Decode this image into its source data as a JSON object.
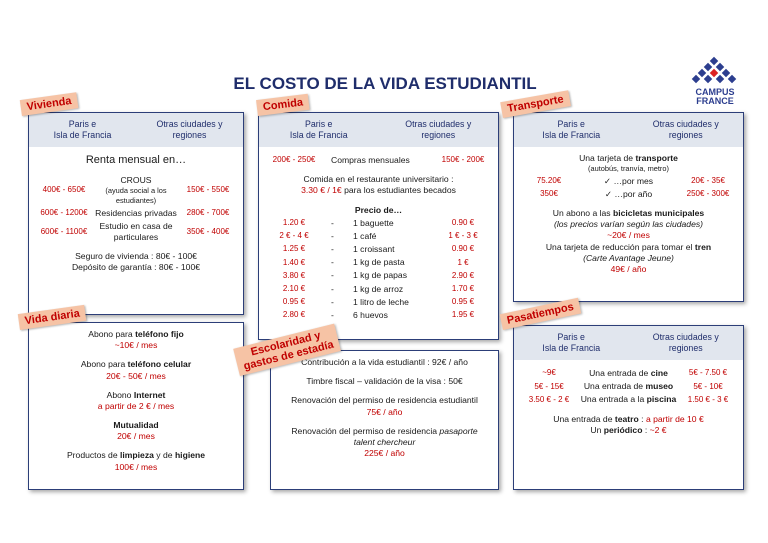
{
  "title": "EL COSTO DE LA VIDA ESTUDIANTIL",
  "logo": {
    "line1": "CAMPUS",
    "line2": "FRANCE"
  },
  "boxes": [
    {
      "id": "vivienda",
      "tag": "Vivienda",
      "columns": [
        "Paris e\nIsla de Francia",
        "Otras ciudades y\nregiones"
      ],
      "groups": [
        [
          {
            "parts": [
              {
                "text": "Renta mensual en…",
                "style": "heading"
              }
            ]
          }
        ],
        [
          {
            "paris": "400€ - 650€",
            "parts": [
              {
                "text": "CROUS"
              },
              {
                "text": "(ayuda social a los estudiantes)",
                "style": "small"
              }
            ],
            "otras": "150€ - 550€"
          },
          {
            "paris": "600€ - 1200€",
            "parts": [
              {
                "text": "Residencias privadas"
              }
            ],
            "otras": "280€ - 700€"
          },
          {
            "paris": "600€ - 1100€",
            "parts": [
              {
                "text": "Estudio en casa de particulares"
              }
            ],
            "otras": "350€ - 400€"
          }
        ],
        [
          {
            "parts": [
              {
                "text": "Seguro de vivienda : 80€ - 100€"
              }
            ]
          },
          {
            "parts": [
              {
                "text": "Depósito de garantía : 80€ - 100€"
              }
            ]
          }
        ]
      ]
    },
    {
      "id": "comida",
      "tag": "Comida",
      "columns": [
        "Paris e\nIsla de Francia",
        "Otras ciudades y\nregiones"
      ],
      "groups": [
        [
          {
            "paris": "200€ - 250€",
            "parts": [
              {
                "text": "Compras mensuales"
              }
            ],
            "otras": "150€ - 200€"
          }
        ],
        [
          {
            "parts": [
              {
                "text": "Comida en el restaurante universitario :"
              }
            ]
          },
          {
            "parts": [
              {
                "text": "3.30 € /  1€",
                "style": "red"
              },
              {
                "text": " para los estudiantes becados"
              }
            ]
          }
        ],
        [
          {
            "parts": [
              {
                "text": "Precio de…",
                "style": "bold"
              }
            ]
          },
          {
            "paris": "1.20 €",
            "parts": [
              {
                "text": "-",
                "style": "dash"
              },
              {
                "text": "1 baguette"
              }
            ],
            "otras": "0.90 €"
          },
          {
            "paris": "2 € - 4 €",
            "parts": [
              {
                "text": "-",
                "style": "dash"
              },
              {
                "text": "1 café"
              }
            ],
            "otras": "1 € - 3 €"
          },
          {
            "paris": "1.25 €",
            "parts": [
              {
                "text": "-",
                "style": "dash"
              },
              {
                "text": "1 croissant"
              }
            ],
            "otras": "0.90 €"
          },
          {
            "paris": "1.40 €",
            "parts": [
              {
                "text": "-",
                "style": "dash"
              },
              {
                "text": "1 kg de pasta"
              }
            ],
            "otras": "1 €"
          },
          {
            "paris": "3.80 €",
            "parts": [
              {
                "text": "-",
                "style": "dash"
              },
              {
                "text": "1 kg de papas"
              }
            ],
            "otras": "2.90 €"
          },
          {
            "paris": "2.10 €",
            "parts": [
              {
                "text": "-",
                "style": "dash"
              },
              {
                "text": "1 kg de arroz"
              }
            ],
            "otras": "1.70 €"
          },
          {
            "paris": "0.95 €",
            "parts": [
              {
                "text": "-",
                "style": "dash"
              },
              {
                "text": "1 litro de leche"
              }
            ],
            "otras": "0.95 €"
          },
          {
            "paris": "2.80 €",
            "parts": [
              {
                "text": "-",
                "style": "dash"
              },
              {
                "text": "6 huevos"
              }
            ],
            "otras": "1.95 €"
          }
        ]
      ]
    },
    {
      "id": "transporte",
      "tag": "Transporte",
      "columns": [
        "Paris e\nIsla de Francia",
        "Otras ciudades y\nregiones"
      ],
      "groups": [
        [
          {
            "parts": [
              {
                "text": "Una tarjeta de "
              },
              {
                "text": "transporte",
                "style": "bold"
              }
            ]
          },
          {
            "parts": [
              {
                "text": "(autobús, tranvía, metro)",
                "style": "small"
              }
            ]
          },
          {
            "paris": "75.20€",
            "parts": [
              {
                "text": "✓ …por mes"
              }
            ],
            "otras": "20€ - 35€"
          },
          {
            "paris": "350€",
            "parts": [
              {
                "text": "✓ …por año"
              }
            ],
            "otras": "250€ - 300€"
          }
        ],
        [
          {
            "parts": [
              {
                "text": "Un abono a las "
              },
              {
                "text": "bicicletas municipales",
                "style": "bold"
              }
            ]
          },
          {
            "parts": [
              {
                "text": "(los precios varían según las ciudades)",
                "style": "italic"
              }
            ]
          },
          {
            "parts": [
              {
                "text": "~20€ / mes",
                "style": "red"
              }
            ]
          },
          {
            "parts": [
              {
                "text": "Una tarjeta de reducción para tomar el "
              },
              {
                "text": "tren",
                "style": "bold"
              }
            ]
          },
          {
            "parts": [
              {
                "text": "(Carte Avantage Jeune)",
                "style": "italic"
              }
            ]
          },
          {
            "parts": [
              {
                "text": "49€ / año",
                "style": "red"
              }
            ]
          }
        ]
      ]
    },
    {
      "id": "vida",
      "tag": "Vida diaria",
      "groups": [
        [
          {
            "parts": [
              {
                "text": "Abono para "
              },
              {
                "text": "teléfono fijo",
                "style": "bold"
              }
            ]
          },
          {
            "parts": [
              {
                "text": "~10€ / mes",
                "style": "red"
              }
            ]
          }
        ],
        [
          {
            "parts": [
              {
                "text": "Abono para "
              },
              {
                "text": "teléfono celular",
                "style": "bold"
              }
            ]
          },
          {
            "parts": [
              {
                "text": "20€ - 50€ / mes",
                "style": "red"
              }
            ]
          }
        ],
        [
          {
            "parts": [
              {
                "text": "Abono "
              },
              {
                "text": "Internet",
                "style": "bold"
              }
            ]
          },
          {
            "parts": [
              {
                "text": "a partir de 2 € / mes",
                "style": "red"
              }
            ]
          }
        ],
        [
          {
            "parts": [
              {
                "text": "Mutualidad",
                "style": "bold"
              }
            ]
          },
          {
            "parts": [
              {
                "text": "20€ / mes",
                "style": "red"
              }
            ]
          }
        ],
        [
          {
            "parts": [
              {
                "text": "Productos de "
              },
              {
                "text": "limpieza",
                "style": "bold"
              },
              {
                "text": " y de "
              },
              {
                "text": "higiene",
                "style": "bold"
              }
            ]
          },
          {
            "parts": [
              {
                "text": "100€ / mes",
                "style": "red"
              }
            ]
          }
        ]
      ]
    },
    {
      "id": "escolaridad",
      "tag": "Escolaridad y\ngastos de estadía",
      "groups": [
        [
          {
            "parts": [
              {
                "text": "Contribución a la vida estudiantil : 92€ / año"
              }
            ]
          }
        ],
        [
          {
            "parts": [
              {
                "text": "Timbre fiscal – validación de la visa : 50€"
              }
            ]
          }
        ],
        [
          {
            "parts": [
              {
                "text": "Renovación del permiso de residencia estudiantil"
              }
            ]
          },
          {
            "parts": [
              {
                "text": "75€ / año",
                "style": "red"
              }
            ]
          }
        ],
        [
          {
            "parts": [
              {
                "text": "Renovación del permiso de residencia "
              },
              {
                "text": "pasaporte",
                "style": "italic"
              }
            ]
          },
          {
            "parts": [
              {
                "text": "talent chercheur",
                "style": "italic"
              }
            ]
          },
          {
            "parts": [
              {
                "text": "225€ / año",
                "style": "red"
              }
            ]
          }
        ]
      ]
    },
    {
      "id": "pasatiempos",
      "tag": "Pasatiempos",
      "columns": [
        "Paris e\nIsla de Francia",
        "Otras ciudades y\nregiones"
      ],
      "groups": [
        [
          {
            "paris": "~9€",
            "parts": [
              {
                "text": "Una entrada de "
              },
              {
                "text": "cine",
                "style": "bold"
              }
            ],
            "otras": "5€ - 7.50 €"
          },
          {
            "paris": "5€ - 15€",
            "parts": [
              {
                "text": "Una entrada de "
              },
              {
                "text": "museo",
                "style": "bold"
              }
            ],
            "otras": "5€ - 10€"
          },
          {
            "paris": "3.50 € - 2 €",
            "parts": [
              {
                "text": "Una entrada a la "
              },
              {
                "text": "piscina",
                "style": "bold"
              }
            ],
            "otras": "1.50 € - 3 €"
          }
        ],
        [
          {
            "parts": [
              {
                "text": "Una entrada de "
              },
              {
                "text": "teatro",
                "style": "bold"
              },
              {
                "text": " : "
              },
              {
                "text": "a partir de 10 €",
                "style": "red"
              }
            ]
          },
          {
            "parts": [
              {
                "text": "Un "
              },
              {
                "text": "periódico",
                "style": "bold"
              },
              {
                "text": " : "
              },
              {
                "text": "~2 €",
                "style": "red"
              }
            ]
          }
        ]
      ]
    }
  ]
}
